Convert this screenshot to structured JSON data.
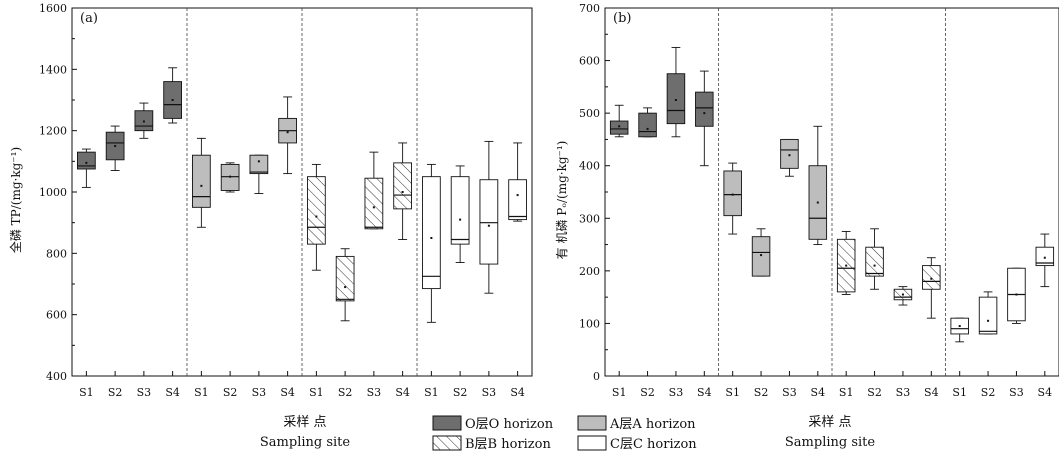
{
  "legend": {
    "items": [
      {
        "key": "O",
        "label": "O层O horizon",
        "fill": "#6e6e6e",
        "hatch": false
      },
      {
        "key": "A",
        "label": "A层A horizon",
        "fill": "#bdbdbd",
        "hatch": false
      },
      {
        "key": "B",
        "label": "B层B horizon",
        "fill": "#ffffff",
        "hatch": true
      },
      {
        "key": "C",
        "label": "C层C horizon",
        "fill": "#ffffff",
        "hatch": false
      }
    ]
  },
  "chart_data": [
    {
      "type": "box",
      "panel_label": "(a)",
      "ylabel": "全磷 TP/(mg·kg⁻¹)",
      "xlabel_cn": "采样 点",
      "xlabel_en": "Sampling site",
      "ylim": [
        400,
        1600
      ],
      "yticks": [
        400,
        600,
        800,
        1000,
        1200,
        1400,
        1600
      ],
      "groups": [
        {
          "horizon": "O",
          "sites": [
            "S1",
            "S2",
            "S3",
            "S4"
          ],
          "boxes": [
            {
              "site": "S1",
              "whisker_low": 1015,
              "q1": 1075,
              "median": 1085,
              "q3": 1130,
              "whisker_high": 1140,
              "mean": 1095
            },
            {
              "site": "S2",
              "whisker_low": 1070,
              "q1": 1105,
              "median": 1160,
              "q3": 1195,
              "whisker_high": 1215,
              "mean": 1150
            },
            {
              "site": "S3",
              "whisker_low": 1175,
              "q1": 1200,
              "median": 1215,
              "q3": 1265,
              "whisker_high": 1290,
              "mean": 1230
            },
            {
              "site": "S4",
              "whisker_low": 1225,
              "q1": 1240,
              "median": 1285,
              "q3": 1360,
              "whisker_high": 1405,
              "mean": 1300
            }
          ]
        },
        {
          "horizon": "A",
          "sites": [
            "S1",
            "S2",
            "S3",
            "S4"
          ],
          "boxes": [
            {
              "site": "S1",
              "whisker_low": 885,
              "q1": 950,
              "median": 985,
              "q3": 1120,
              "whisker_high": 1175,
              "mean": 1020
            },
            {
              "site": "S2",
              "whisker_low": 1000,
              "q1": 1005,
              "median": 1050,
              "q3": 1090,
              "whisker_high": 1095,
              "mean": 1050
            },
            {
              "site": "S3",
              "whisker_low": 995,
              "q1": 1060,
              "median": 1065,
              "q3": 1120,
              "whisker_high": 1120,
              "mean": 1100
            },
            {
              "site": "S4",
              "whisker_low": 1060,
              "q1": 1160,
              "median": 1200,
              "q3": 1240,
              "whisker_high": 1310,
              "mean": 1195
            }
          ]
        },
        {
          "horizon": "B",
          "sites": [
            "S1",
            "S2",
            "S3",
            "S4"
          ],
          "boxes": [
            {
              "site": "S1",
              "whisker_low": 745,
              "q1": 830,
              "median": 885,
              "q3": 1050,
              "whisker_high": 1090,
              "mean": 920
            },
            {
              "site": "S2",
              "whisker_low": 580,
              "q1": 645,
              "median": 650,
              "q3": 790,
              "whisker_high": 815,
              "mean": 690
            },
            {
              "site": "S3",
              "whisker_low": 880,
              "q1": 880,
              "median": 885,
              "q3": 1045,
              "whisker_high": 1130,
              "mean": 950
            },
            {
              "site": "S4",
              "whisker_low": 845,
              "q1": 945,
              "median": 990,
              "q3": 1095,
              "whisker_high": 1160,
              "mean": 1000
            }
          ]
        },
        {
          "horizon": "C",
          "sites": [
            "S1",
            "S2",
            "S3",
            "S4"
          ],
          "boxes": [
            {
              "site": "S1",
              "whisker_low": 575,
              "q1": 685,
              "median": 725,
              "q3": 1050,
              "whisker_high": 1090,
              "mean": 850
            },
            {
              "site": "S2",
              "whisker_low": 770,
              "q1": 830,
              "median": 845,
              "q3": 1050,
              "whisker_high": 1085,
              "mean": 910
            },
            {
              "site": "S3",
              "whisker_low": 670,
              "q1": 765,
              "median": 900,
              "q3": 1040,
              "whisker_high": 1165,
              "mean": 890
            },
            {
              "site": "S4",
              "whisker_low": 905,
              "q1": 910,
              "median": 920,
              "q3": 1040,
              "whisker_high": 1160,
              "mean": 990
            }
          ]
        }
      ]
    },
    {
      "type": "box",
      "panel_label": "(b)",
      "ylabel": "有 机磷  Pₒ/(mg·kg⁻¹)",
      "xlabel_cn": "采样 点",
      "xlabel_en": "Sampling site",
      "ylim": [
        0,
        700
      ],
      "yticks": [
        0,
        100,
        200,
        300,
        400,
        500,
        600,
        700
      ],
      "groups": [
        {
          "horizon": "O",
          "sites": [
            "S1",
            "S2",
            "S3",
            "S4"
          ],
          "boxes": [
            {
              "site": "S1",
              "whisker_low": 455,
              "q1": 460,
              "median": 470,
              "q3": 485,
              "whisker_high": 515,
              "mean": 475
            },
            {
              "site": "S2",
              "whisker_low": 455,
              "q1": 455,
              "median": 465,
              "q3": 500,
              "whisker_high": 510,
              "mean": 470
            },
            {
              "site": "S3",
              "whisker_low": 455,
              "q1": 480,
              "median": 505,
              "q3": 575,
              "whisker_high": 625,
              "mean": 525
            },
            {
              "site": "S4",
              "whisker_low": 400,
              "q1": 475,
              "median": 510,
              "q3": 540,
              "whisker_high": 580,
              "mean": 500
            }
          ]
        },
        {
          "horizon": "A",
          "sites": [
            "S1",
            "S2",
            "S3",
            "S4"
          ],
          "boxes": [
            {
              "site": "S1",
              "whisker_low": 270,
              "q1": 305,
              "median": 345,
              "q3": 390,
              "whisker_high": 405,
              "mean": 345
            },
            {
              "site": "S2",
              "whisker_low": 190,
              "q1": 190,
              "median": 235,
              "q3": 265,
              "whisker_high": 280,
              "mean": 230
            },
            {
              "site": "S3",
              "whisker_low": 380,
              "q1": 395,
              "median": 430,
              "q3": 450,
              "whisker_high": 450,
              "mean": 420
            },
            {
              "site": "S4",
              "whisker_low": 250,
              "q1": 260,
              "median": 300,
              "q3": 400,
              "whisker_high": 475,
              "mean": 330
            }
          ]
        },
        {
          "horizon": "B",
          "sites": [
            "S1",
            "S2",
            "S3",
            "S4"
          ],
          "boxes": [
            {
              "site": "S1",
              "whisker_low": 155,
              "q1": 160,
              "median": 205,
              "q3": 260,
              "whisker_high": 275,
              "mean": 210
            },
            {
              "site": "S2",
              "whisker_low": 165,
              "q1": 190,
              "median": 195,
              "q3": 245,
              "whisker_high": 280,
              "mean": 210
            },
            {
              "site": "S3",
              "whisker_low": 135,
              "q1": 145,
              "median": 150,
              "q3": 165,
              "whisker_high": 170,
              "mean": 155
            },
            {
              "site": "S4",
              "whisker_low": 110,
              "q1": 165,
              "median": 180,
              "q3": 210,
              "whisker_high": 225,
              "mean": 185
            }
          ]
        },
        {
          "horizon": "C",
          "sites": [
            "S1",
            "S2",
            "S3",
            "S4"
          ],
          "boxes": [
            {
              "site": "S1",
              "whisker_low": 65,
              "q1": 80,
              "median": 90,
              "q3": 110,
              "whisker_high": 110,
              "mean": 95
            },
            {
              "site": "S2",
              "whisker_low": 80,
              "q1": 80,
              "median": 85,
              "q3": 150,
              "whisker_high": 160,
              "mean": 105
            },
            {
              "site": "S3",
              "whisker_low": 100,
              "q1": 105,
              "median": 155,
              "q3": 205,
              "whisker_high": 205,
              "mean": 155
            },
            {
              "site": "S4",
              "whisker_low": 170,
              "q1": 210,
              "median": 215,
              "q3": 245,
              "whisker_high": 270,
              "mean": 225
            }
          ]
        }
      ]
    }
  ]
}
